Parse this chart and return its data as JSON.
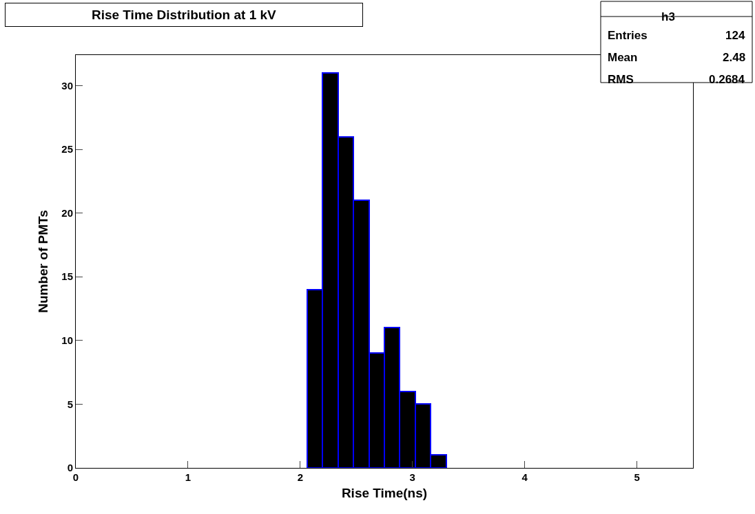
{
  "chart_data": {
    "type": "histogram",
    "title": "Rise Time Distribution at 1 kV",
    "xlabel": "Rise Time(ns)",
    "ylabel": "Number of PMTs",
    "bins": [
      2.0625,
      2.2,
      2.3375,
      2.475,
      2.6125,
      2.75,
      2.8875,
      3.025,
      3.1625,
      3.3
    ],
    "values": [
      14,
      31,
      26,
      21,
      9,
      11,
      6,
      5,
      1
    ],
    "color": "#000000",
    "xlim": [
      0,
      5.5
    ],
    "xticks": [
      0,
      1,
      2,
      3,
      4,
      5
    ],
    "ylim": [
      0,
      32.4
    ],
    "yticks": [
      0,
      5,
      10,
      15,
      20,
      25,
      30
    ],
    "annotations": [
      "h3",
      "Entries 124",
      "Mean 2.48",
      "RMS 0.2684"
    ]
  }
}
